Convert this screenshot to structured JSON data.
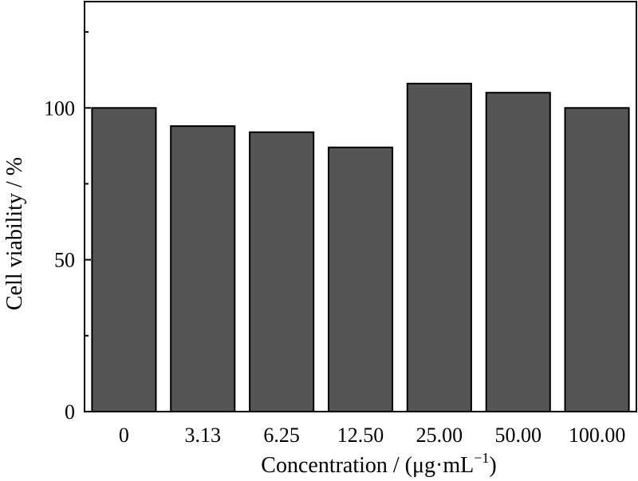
{
  "chart_data": {
    "type": "bar",
    "categories": [
      "0",
      "3.13",
      "6.25",
      "12.50",
      "25.00",
      "50.00",
      "100.00"
    ],
    "values": [
      100,
      94,
      92,
      87,
      108,
      105,
      100
    ],
    "xlabel": {
      "main": "Concentration / (μg·mL",
      "sup": "−1",
      "close": ")"
    },
    "ylabel": "Cell viability / %",
    "ylim": [
      0,
      135
    ],
    "yticks": [
      0,
      50,
      100
    ],
    "yticks_minor": [
      25,
      75,
      125
    ],
    "grid": false,
    "bar_color": "#555555",
    "bar_edge_color": "#000000"
  }
}
